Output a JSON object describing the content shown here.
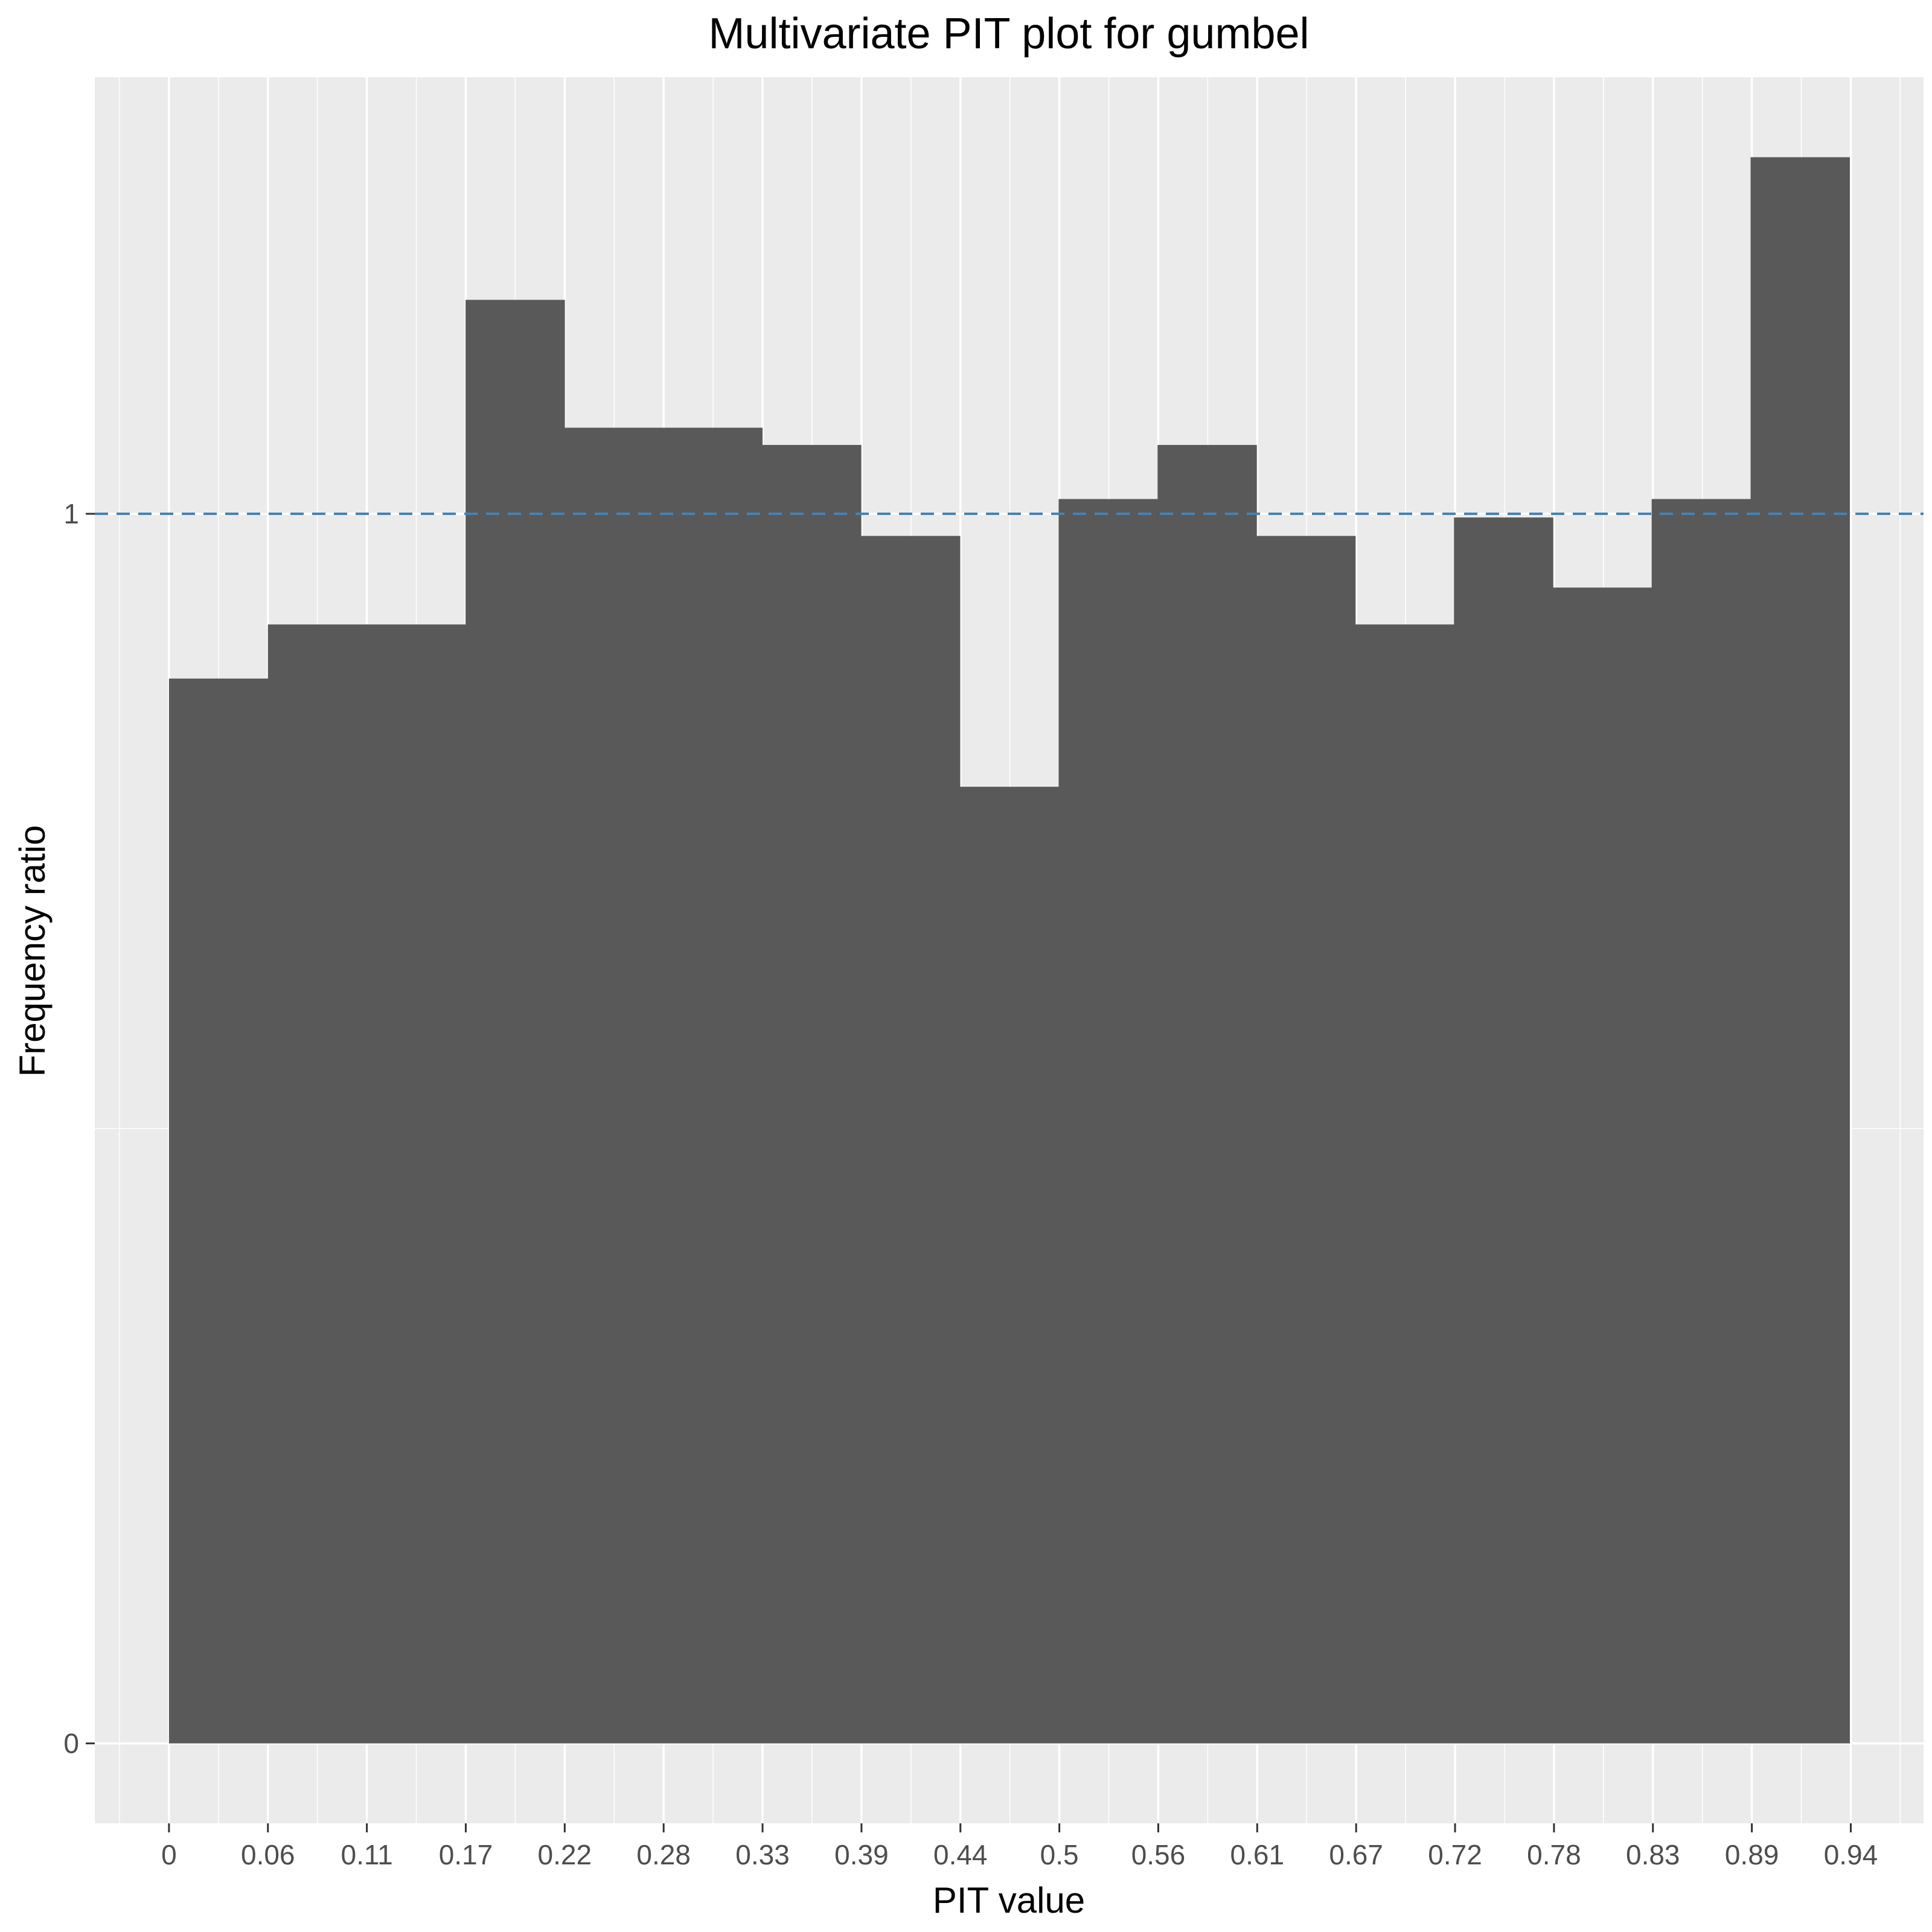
{
  "chart_data": {
    "type": "bar",
    "title": "Multivariate PIT plot for gumbel",
    "xlabel": "PIT value",
    "ylabel": "Frequency ratio",
    "x_ticks": [
      "0",
      "0.06",
      "0.11",
      "0.17",
      "0.22",
      "0.28",
      "0.33",
      "0.39",
      "0.44",
      "0.5",
      "0.56",
      "0.61",
      "0.67",
      "0.72",
      "0.78",
      "0.83",
      "0.89",
      "0.94"
    ],
    "y_ticks": [
      "0",
      "1"
    ],
    "bin_width": 0.0556,
    "bins_start": [
      0,
      0.0556,
      0.1111,
      0.1667,
      0.2222,
      0.2778,
      0.3333,
      0.3889,
      0.4444,
      0.5,
      0.5556,
      0.6111,
      0.6667,
      0.7222,
      0.7778,
      0.8333,
      0.8889
    ],
    "values": [
      0.866,
      0.91,
      0.91,
      1.174,
      1.07,
      1.07,
      1.056,
      0.982,
      0.778,
      1.012,
      1.056,
      0.982,
      0.91,
      0.997,
      0.94,
      1.012,
      1.29
    ],
    "reference_line": {
      "y": 1,
      "style": "dashed",
      "color": "#4682b4"
    },
    "xlim": [
      -0.0417,
      0.9861
    ],
    "ylim": [
      -0.065,
      1.355
    ],
    "bar_color": "#595959",
    "panel_color": "#ebebeb",
    "grid": true
  }
}
